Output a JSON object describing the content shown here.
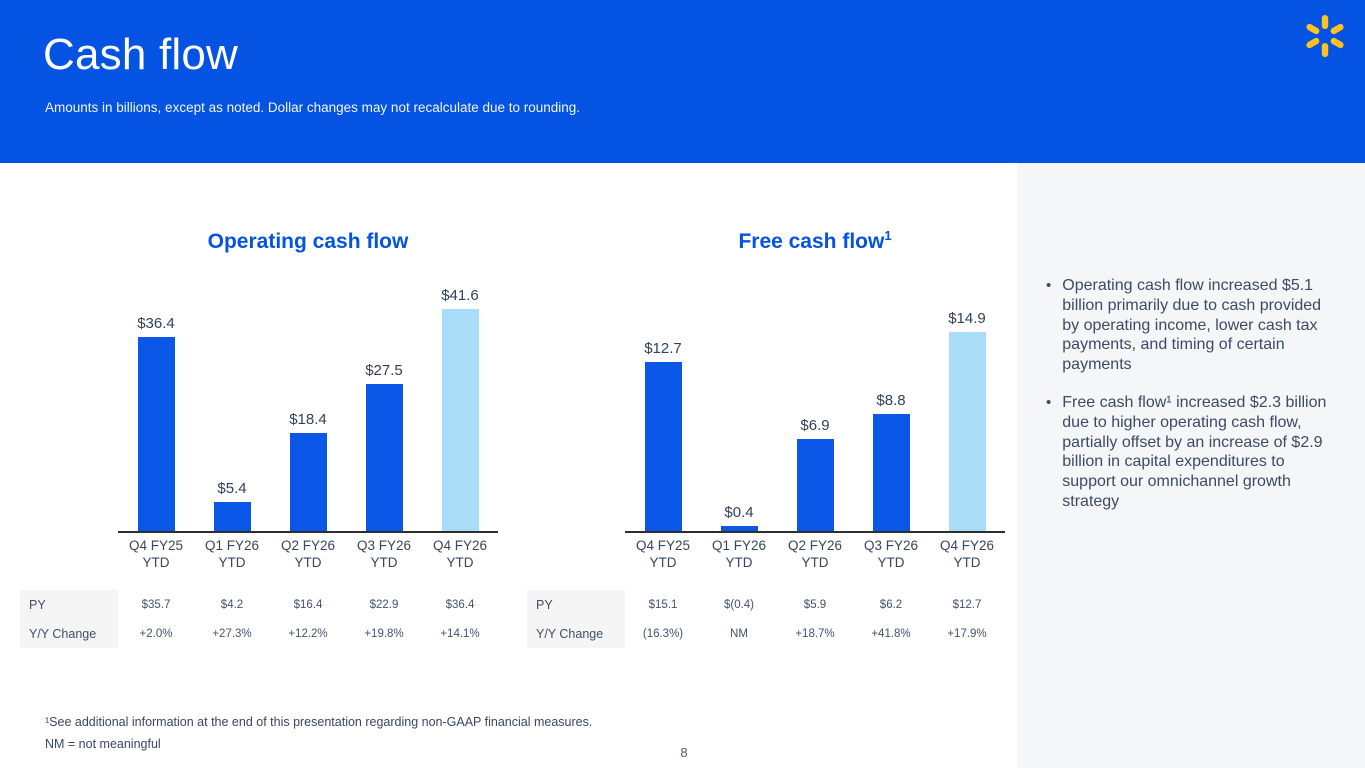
{
  "header": {
    "title": "Cash flow",
    "subtitle": "Amounts in billions, except as noted.  Dollar changes may not recalculate due to rounding."
  },
  "logo": {
    "name": "walmart-spark",
    "color": "#FFC220"
  },
  "colors": {
    "header_bg": "#0553E2",
    "chart_title_blue": "#0553E2",
    "bar_primary": "#0B57E8",
    "bar_highlight": "#A9DDF7",
    "panel_bg": "#F5F6F7",
    "table_label_bg": "#F5F5F5",
    "text_dark": "#39465F"
  },
  "chart_data": [
    {
      "type": "bar",
      "title": "Operating cash flow",
      "title_superscript": "",
      "categories": [
        "Q4 FY25",
        "Q1 FY26",
        "Q2 FY26",
        "Q3 FY26",
        "Q4 FY26"
      ],
      "category_suffix": "YTD",
      "values": [
        36.4,
        5.4,
        18.4,
        27.5,
        41.6
      ],
      "value_labels": [
        "$36.4",
        "$5.4",
        "$18.4",
        "$27.5",
        "$41.6"
      ],
      "highlight_index": 4,
      "ylim": [
        0,
        45
      ],
      "grid": false,
      "legend": false,
      "table": {
        "rows": [
          {
            "label": "PY",
            "cells": [
              "$35.7",
              "$4.2",
              "$16.4",
              "$22.9",
              "$36.4"
            ]
          },
          {
            "label": "Y/Y Change",
            "cells": [
              "+2.0%",
              "+27.3%",
              "+12.2%",
              "+19.8%",
              "+14.1%"
            ]
          }
        ]
      }
    },
    {
      "type": "bar",
      "title": "Free cash flow",
      "title_superscript": "1",
      "categories": [
        "Q4 FY25",
        "Q1 FY26",
        "Q2 FY26",
        "Q3 FY26",
        "Q4 FY26"
      ],
      "category_suffix": "YTD",
      "values": [
        12.7,
        0.4,
        6.9,
        8.8,
        14.9
      ],
      "value_labels": [
        "$12.7",
        "$0.4",
        "$6.9",
        "$8.8",
        "$14.9"
      ],
      "highlight_index": 4,
      "ylim": [
        0,
        18
      ],
      "grid": false,
      "legend": false,
      "table": {
        "rows": [
          {
            "label": "PY",
            "cells": [
              "$15.1",
              "$(0.4)",
              "$5.9",
              "$6.2",
              "$12.7"
            ]
          },
          {
            "label": "Y/Y Change",
            "cells": [
              "(16.3%)",
              "NM",
              "+18.7%",
              "+41.8%",
              "+17.9%"
            ]
          }
        ]
      }
    }
  ],
  "sidebar": {
    "bullets": [
      {
        "text": "Operating cash flow increased $5.1 billion primarily due to cash provided by operating income, lower cash tax payments, and timing of certain payments"
      },
      {
        "text": "Free cash flow¹ increased $2.3 billion due to higher operating cash flow, partially offset by an increase of $2.9 billion in capital expenditures to support our omnichannel growth strategy"
      }
    ]
  },
  "footnotes": {
    "line1": "¹See additional information at the end of this presentation regarding non-GAAP financial measures.",
    "line2": "NM = not meaningful"
  },
  "page_number": "8"
}
